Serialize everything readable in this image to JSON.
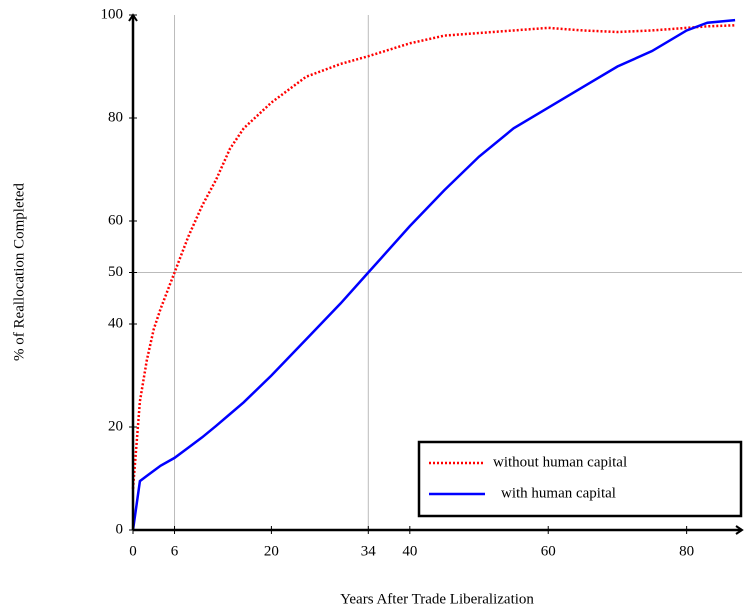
{
  "chart_data": {
    "type": "line",
    "xlabel": "Years After Trade Liberalization",
    "ylabel": "% of Reallocation Completed",
    "x": [
      0,
      1,
      2,
      3,
      4,
      6,
      8,
      10,
      12,
      14,
      16,
      20,
      25,
      30,
      34,
      40,
      45,
      50,
      55,
      60,
      65,
      70,
      75,
      80,
      83,
      87
    ],
    "series": [
      {
        "name": "without human capital",
        "color": "#ff0000",
        "dash": "dotted",
        "values": [
          8,
          25,
          33,
          39,
          43,
          50,
          57,
          63,
          68,
          74,
          78,
          83,
          88,
          90.5,
          92,
          94.5,
          96,
          96.5,
          97,
          97.5,
          97,
          96.7,
          97,
          97.5,
          97.8,
          98
        ]
      },
      {
        "name": "with human capital",
        "color": "#0000ff",
        "dash": "solid",
        "values": [
          0,
          9.5,
          10.5,
          11.5,
          12.5,
          14,
          16,
          18,
          20.2,
          22.5,
          24.8,
          30,
          37,
          44,
          50,
          59,
          66,
          72.5,
          78,
          82,
          86,
          90,
          93,
          97,
          98.5,
          99
        ]
      }
    ],
    "xlim": [
      0,
      88
    ],
    "ylim": [
      0,
      100
    ],
    "xticks": [
      0,
      6,
      20,
      34,
      40,
      60,
      80
    ],
    "yticks": [
      0,
      20,
      40,
      50,
      60,
      80,
      100
    ],
    "grid_x": [
      6,
      34
    ],
    "grid_y": [
      50
    ],
    "legend_position": "lower right"
  }
}
